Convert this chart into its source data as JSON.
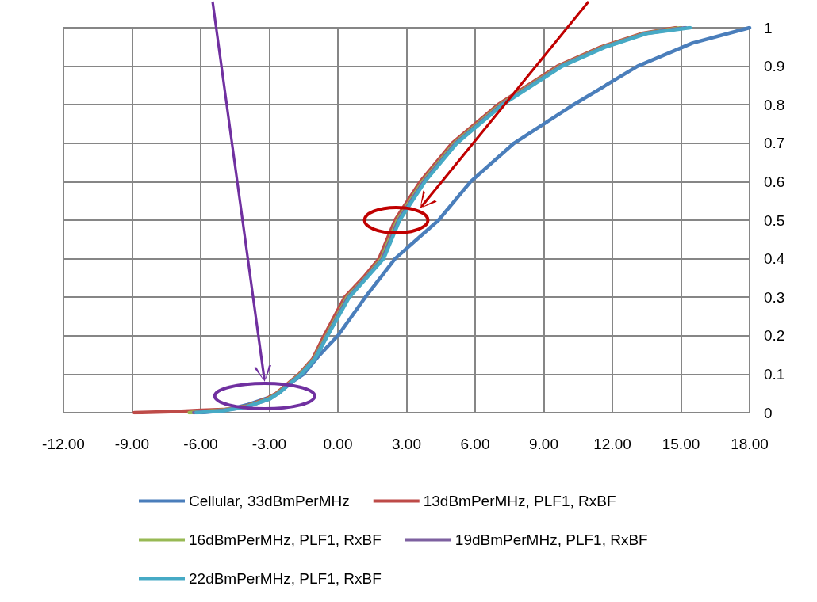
{
  "chart_data": {
    "type": "line",
    "xlim": [
      -12,
      18
    ],
    "xticks": [
      {
        "value": -12,
        "label": "-12.00"
      },
      {
        "value": -9,
        "label": "-9.00"
      },
      {
        "value": -6,
        "label": "-6.00"
      },
      {
        "value": -3,
        "label": "-3.00"
      },
      {
        "value": 0,
        "label": "0.00"
      },
      {
        "value": 3,
        "label": "3.00"
      },
      {
        "value": 6,
        "label": "6.00"
      },
      {
        "value": 9,
        "label": "9.00"
      },
      {
        "value": 12,
        "label": "12.00"
      },
      {
        "value": 15,
        "label": "15.00"
      },
      {
        "value": 18,
        "label": "18.00"
      }
    ],
    "ylim": [
      0,
      1
    ],
    "yticks": [
      0,
      0.1,
      0.2,
      0.3,
      0.4,
      0.5,
      0.6,
      0.7,
      0.8,
      0.9,
      1
    ],
    "grid": true,
    "legend": "bottom",
    "marker": "none",
    "line_style": "solid",
    "series": [
      {
        "name": "Cellular, 33dBmPerMHz",
        "color": "#4a7ebb",
        "x": [
          -6,
          -5,
          -4,
          -3,
          -2.6,
          -2,
          -1.5,
          -0.8,
          0,
          1.2,
          2.5,
          4.4,
          5.8,
          7.7,
          10.3,
          13.1,
          15.5,
          18
        ],
        "values": [
          0,
          0.005,
          0.02,
          0.04,
          0.05,
          0.08,
          0.1,
          0.15,
          0.2,
          0.3,
          0.4,
          0.5,
          0.6,
          0.7,
          0.8,
          0.9,
          0.96,
          1
        ]
      },
      {
        "name": "13dBmPerMHz, PLF1, RxBF",
        "color": "#be4b48",
        "x": [
          -8.9,
          -7,
          -6,
          -5,
          -4,
          -3.1,
          -2.7,
          -2.1,
          -1.7,
          -1.1,
          -0.6,
          0.3,
          1.1,
          1.8,
          2.5,
          3.6,
          5,
          7,
          9.6,
          11.5,
          13.3,
          14.8
        ],
        "values": [
          0,
          0.003,
          0.006,
          0.008,
          0.017,
          0.037,
          0.05,
          0.08,
          0.1,
          0.14,
          0.2,
          0.3,
          0.35,
          0.4,
          0.5,
          0.6,
          0.7,
          0.8,
          0.9,
          0.95,
          0.985,
          1
        ]
      },
      {
        "name": "16dBmPerMHz, PLF1, RxBF",
        "color": "#98b954",
        "x": [
          -6.5,
          -5,
          -4,
          -3.05,
          -2.65,
          -2.05,
          -1.65,
          -1.05,
          -0.5,
          0.4,
          1.2,
          1.9,
          2.6,
          3.7,
          5.1,
          7.1,
          9.7,
          11.6,
          13.4,
          15
        ],
        "values": [
          0,
          0.007,
          0.016,
          0.036,
          0.05,
          0.08,
          0.1,
          0.14,
          0.2,
          0.3,
          0.35,
          0.4,
          0.5,
          0.6,
          0.7,
          0.8,
          0.9,
          0.95,
          0.985,
          1
        ]
      },
      {
        "name": "19dBmPerMHz, PLF1, RxBF",
        "color": "#7d60a0",
        "x": [
          -6.3,
          -5,
          -4,
          -3.02,
          -2.62,
          -2.02,
          -1.62,
          -1.02,
          -0.47,
          0.45,
          1.22,
          1.95,
          2.65,
          3.75,
          5.15,
          7.15,
          9.75,
          11.65,
          13.45,
          15.2
        ],
        "values": [
          0,
          0.006,
          0.015,
          0.035,
          0.05,
          0.08,
          0.1,
          0.14,
          0.2,
          0.3,
          0.35,
          0.4,
          0.5,
          0.6,
          0.7,
          0.8,
          0.9,
          0.95,
          0.985,
          1
        ]
      },
      {
        "name": "22dBmPerMHz, PLF1, RxBF",
        "color": "#46aac5",
        "x": [
          -6.2,
          -5,
          -4,
          -3,
          -2.6,
          -2,
          -1.6,
          -1,
          -0.45,
          0.5,
          1.25,
          2,
          2.7,
          3.8,
          5.2,
          7.2,
          9.8,
          11.7,
          13.5,
          15.4
        ],
        "values": [
          0,
          0.005,
          0.015,
          0.035,
          0.05,
          0.08,
          0.1,
          0.14,
          0.2,
          0.3,
          0.35,
          0.4,
          0.5,
          0.6,
          0.7,
          0.8,
          0.9,
          0.95,
          0.985,
          1
        ]
      }
    ]
  }
}
